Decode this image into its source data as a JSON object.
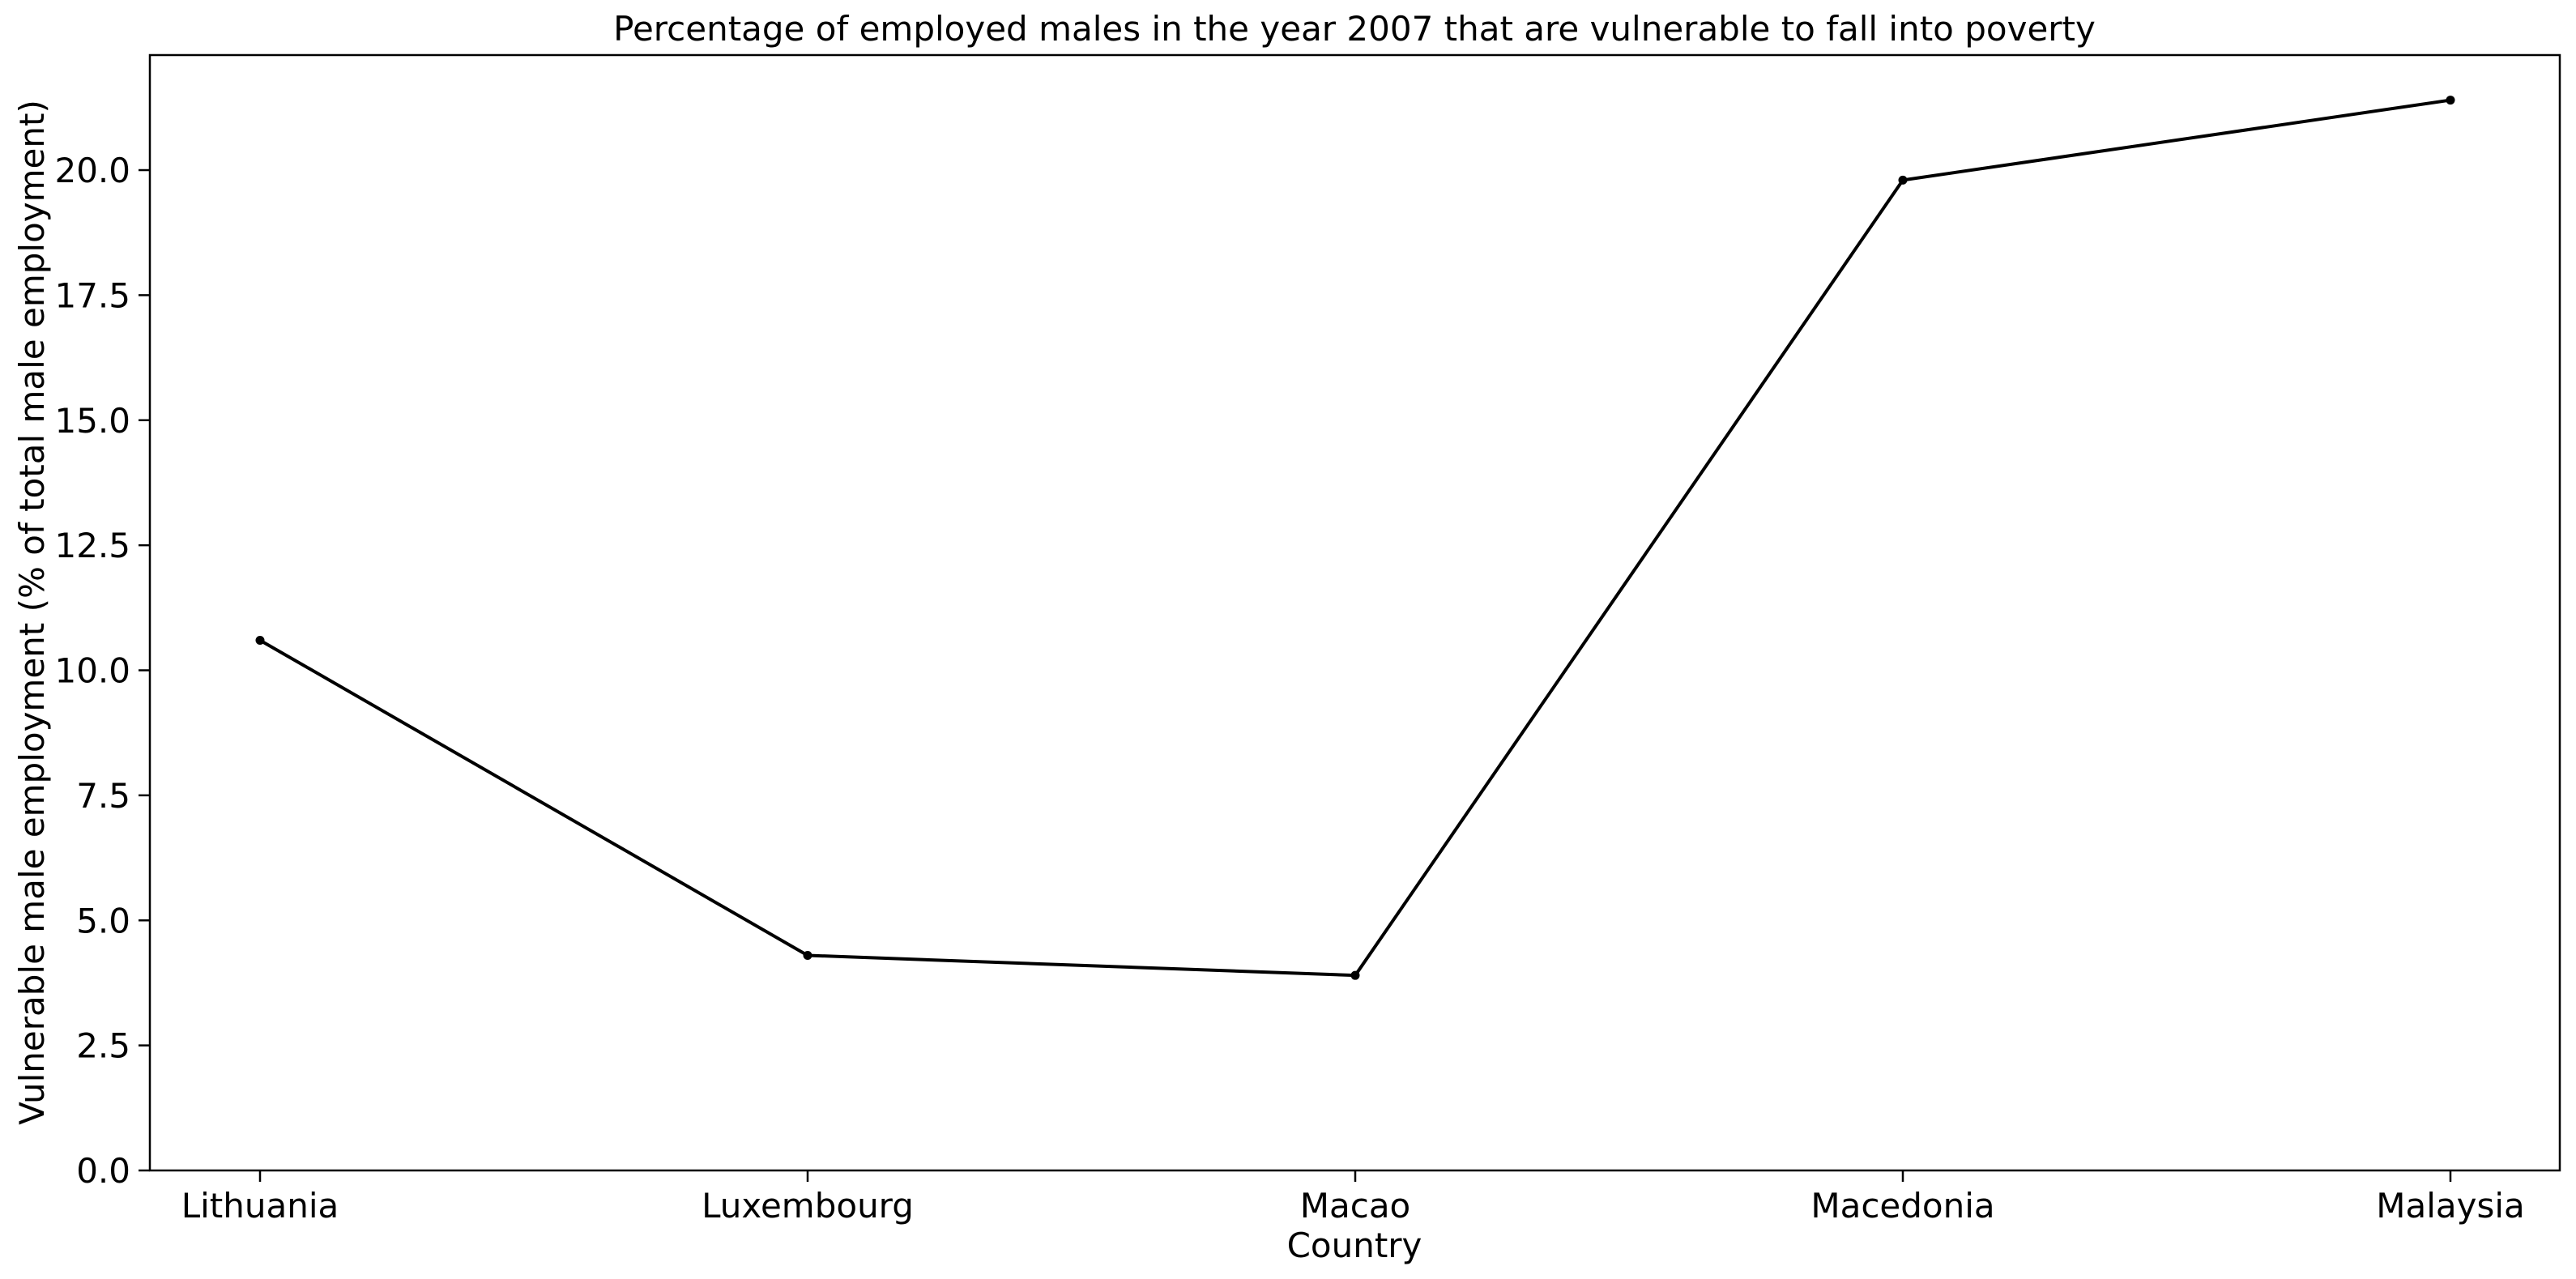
{
  "chart_data": {
    "type": "line",
    "title": "Percentage of employed males in the year 2007 that are vulnerable to fall into poverty",
    "xlabel": "Country",
    "ylabel": "Vulnerable male employment (% of total male employment)",
    "categories": [
      "Lithuania",
      "Luxembourg",
      "Macao",
      "Macedonia",
      "Malaysia"
    ],
    "series": [
      {
        "values": [
          10.6,
          4.3,
          3.9,
          19.8,
          21.4
        ]
      }
    ],
    "ylim": [
      0,
      22.3
    ],
    "yticks": [
      0.0,
      2.5,
      5.0,
      7.5,
      10.0,
      12.5,
      15.0,
      17.5,
      20.0
    ],
    "ytick_labels": [
      "0.0",
      "2.5",
      "5.0",
      "7.5",
      "10.0",
      "12.5",
      "15.0",
      "17.5",
      "20.0"
    ],
    "grid": false,
    "legend": "none",
    "colors": {
      "line": "#000000",
      "marker": "#000000",
      "axes": "#000000",
      "background": "#ffffff"
    }
  }
}
